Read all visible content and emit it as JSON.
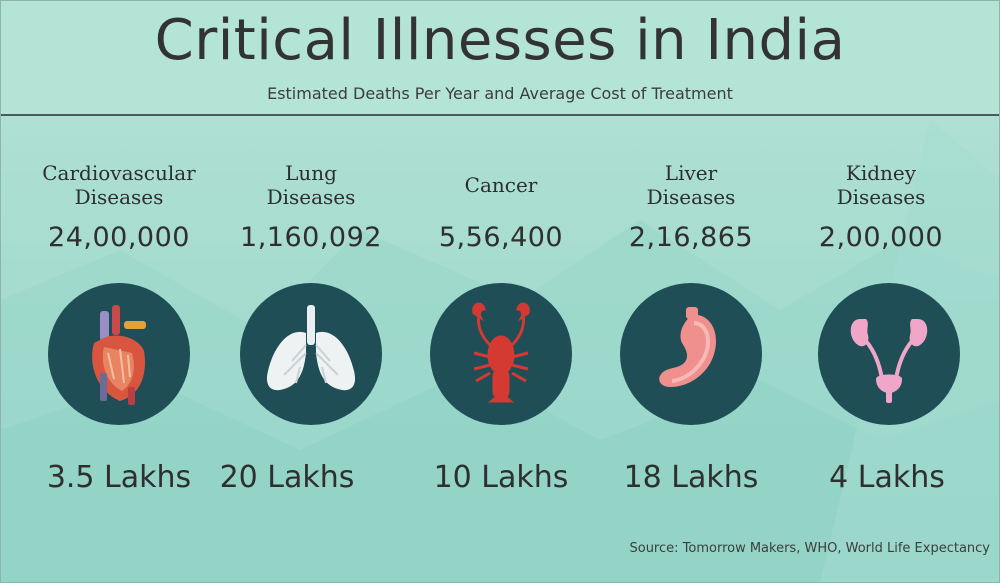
{
  "header": {
    "title": "Critical Illnesses in India",
    "subtitle": "Estimated Deaths Per Year and Average Cost of Treatment"
  },
  "colors": {
    "background": "#a8ddd0",
    "circle": "#1f4e57",
    "text": "#2f2f2f"
  },
  "diseases": [
    {
      "name_line1": "Cardiovascular",
      "name_line2": "Diseases",
      "deaths": "24,00,000",
      "cost": "3.5 Lakhs",
      "icon": "heart-icon"
    },
    {
      "name_line1": "Lung",
      "name_line2": "Diseases",
      "deaths": "1,160,092",
      "cost": "20 Lakhs",
      "icon": "lungs-icon"
    },
    {
      "name_line1": "Cancer",
      "name_line2": "",
      "deaths": "5,56,400",
      "cost": "10 Lakhs",
      "icon": "crab-icon"
    },
    {
      "name_line1": "Liver",
      "name_line2": "Diseases",
      "deaths": "2,16,865",
      "cost": "18 Lakhs",
      "icon": "liver-icon"
    },
    {
      "name_line1": "Kidney",
      "name_line2": "Diseases",
      "deaths": "2,00,000",
      "cost": "4 Lakhs",
      "icon": "kidney-icon"
    }
  ],
  "footer": {
    "source": "Source: Tomorrow Makers, WHO, World Life Expectancy"
  }
}
